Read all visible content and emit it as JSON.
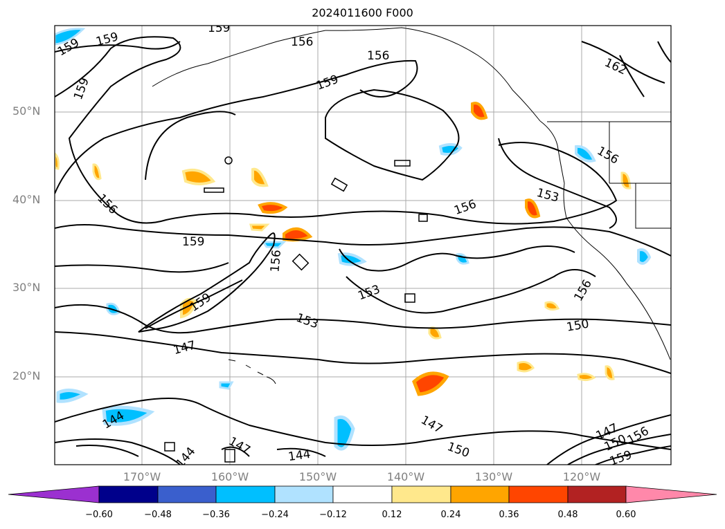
{
  "title": "2024011600 F000",
  "lat_labels": [
    "50°N",
    "40°N",
    "30°N",
    "20°N"
  ],
  "lon_labels": [
    "170°W",
    "160°W",
    "150°W",
    "140°W",
    "130°W",
    "120°W"
  ],
  "contour_labels": [
    "159",
    "159",
    "159",
    "156",
    "156",
    "159",
    "162",
    "159",
    "156",
    "156",
    "153",
    "156",
    "159",
    "159",
    "156",
    "153",
    "153",
    "150",
    "147",
    "156",
    "144",
    "147",
    "144",
    "144",
    "147",
    "150",
    "147",
    "150",
    "156",
    "159"
  ],
  "colorbar": {
    "ticks": [
      "−0.60",
      "−0.48",
      "−0.36",
      "−0.24",
      "−0.12",
      "0.12",
      "0.24",
      "0.36",
      "0.48",
      "0.60"
    ],
    "colors": [
      "#9b30d0",
      "#00008b",
      "#3a5fcd",
      "#00bfff",
      "#b0e2ff",
      "#ffffff",
      "#ffe88c",
      "#ffa500",
      "#ff4500",
      "#b22222",
      "#ff88aa"
    ]
  },
  "colors": {
    "frame": "#000000",
    "grid": "#a0a0a0",
    "coast": "#000000",
    "label": "#808080"
  }
}
